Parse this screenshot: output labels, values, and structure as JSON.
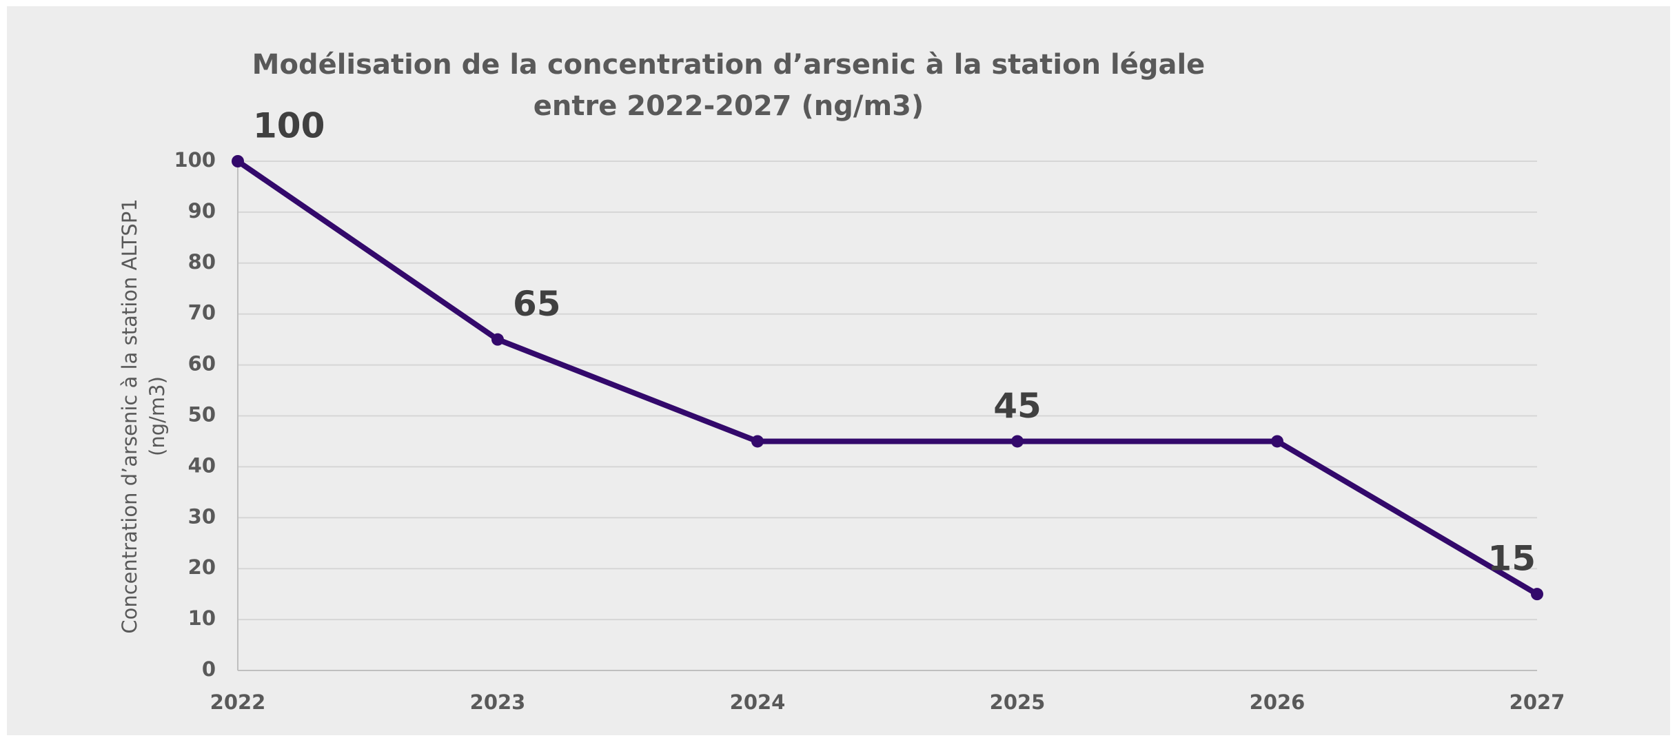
{
  "chart_data": {
    "type": "line",
    "title": [
      "Modélisation de la concentration d’arsenic à la station légale",
      "entre 2022-2027 (ng/m3)"
    ],
    "y_label": [
      "Concentration d’arsenic à la station ALTSP1",
      "(ng/m3)"
    ],
    "categories": [
      "2022",
      "2023",
      "2024",
      "2025",
      "2026",
      "2027"
    ],
    "series": [
      {
        "values": [
          100,
          65,
          45,
          45,
          45,
          15
        ],
        "value_labels": [
          "100",
          "65",
          null,
          "45",
          null,
          "15"
        ],
        "color": "#33096b"
      }
    ],
    "ylim": [
      0,
      100
    ],
    "yticks": [
      0,
      10,
      20,
      30,
      40,
      50,
      60,
      70,
      80,
      90,
      100
    ],
    "grid": true
  }
}
